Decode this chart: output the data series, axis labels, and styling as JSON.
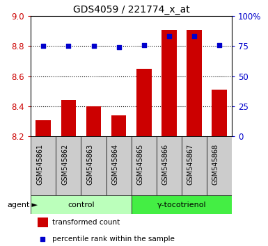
{
  "title": "GDS4059 / 221774_x_at",
  "samples": [
    "GSM545861",
    "GSM545862",
    "GSM545863",
    "GSM545864",
    "GSM545865",
    "GSM545866",
    "GSM545867",
    "GSM545868"
  ],
  "bar_values": [
    8.31,
    8.44,
    8.4,
    8.34,
    8.65,
    8.91,
    8.91,
    8.51
  ],
  "dot_values": [
    75,
    75,
    75,
    74,
    76,
    83,
    83,
    76
  ],
  "bar_color": "#cc0000",
  "dot_color": "#0000cc",
  "ylim_left": [
    8.2,
    9.0
  ],
  "ylim_right": [
    0,
    100
  ],
  "yticks_left": [
    8.2,
    8.4,
    8.6,
    8.8,
    9.0
  ],
  "yticks_right": [
    0,
    25,
    50,
    75,
    100
  ],
  "ytick_labels_right": [
    "0",
    "25",
    "50",
    "75",
    "100%"
  ],
  "groups": [
    {
      "label": "control",
      "indices": [
        0,
        1,
        2,
        3
      ],
      "color": "#bbffbb"
    },
    {
      "label": "γ-tocotrienol",
      "indices": [
        4,
        5,
        6,
        7
      ],
      "color": "#44ee44"
    }
  ],
  "agent_label": "agent",
  "legend_bar_label": "transformed count",
  "legend_dot_label": "percentile rank within the sample",
  "grid_color": "#000000",
  "tick_area_bg": "#cccccc",
  "plot_bg": "#ffffff"
}
